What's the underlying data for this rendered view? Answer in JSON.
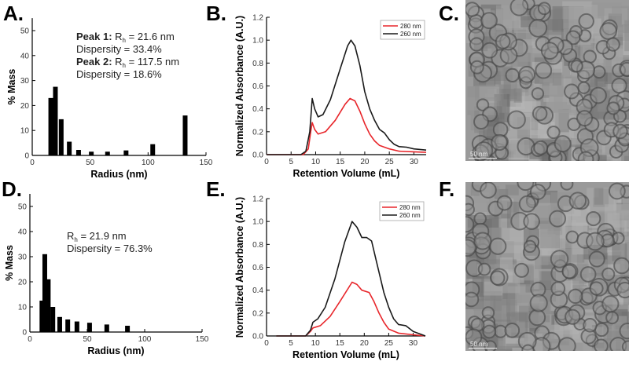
{
  "panel_labels": {
    "a": "A.",
    "b": "B.",
    "c": "C.",
    "d": "D.",
    "e": "E.",
    "f": "F."
  },
  "chart_data": [
    {
      "id": "A",
      "type": "bar",
      "xlabel": "Radius (nm)",
      "ylabel": "% Mass",
      "xlim": [
        0,
        150
      ],
      "ylim": [
        0,
        55
      ],
      "xticks": [
        0,
        50,
        100,
        150
      ],
      "yticks": [
        0,
        10,
        20,
        30,
        40,
        50
      ],
      "x": [
        16,
        20,
        25,
        32,
        40,
        51,
        65,
        81,
        104,
        132
      ],
      "values": [
        23,
        27.5,
        14.5,
        5.5,
        2.2,
        1.5,
        1.5,
        2,
        4.5,
        16
      ],
      "annotation": [
        {
          "bold": "Peak 1:",
          "text": " R",
          "sub": "h",
          "rest": " = 21.6 nm"
        },
        {
          "bold": "",
          "text": "Dispersity = 33.4%",
          "sub": "",
          "rest": ""
        },
        {
          "bold": "Peak 2:",
          "text": " R",
          "sub": "h",
          "rest": " = 117.5 nm"
        },
        {
          "bold": "",
          "text": "Dispersity = 18.6%",
          "sub": "",
          "rest": ""
        }
      ]
    },
    {
      "id": "B",
      "type": "line",
      "xlabel": "Retention Volume (mL)",
      "ylabel": "Normalized Absorbance (A.U.)",
      "xlim": [
        0,
        32.5
      ],
      "ylim": [
        0,
        1.2
      ],
      "xticks": [
        0,
        5,
        10,
        15,
        20,
        25,
        30
      ],
      "yticks": [
        0.0,
        0.2,
        0.4,
        0.6,
        0.8,
        1.0,
        1.2
      ],
      "legend": "top-right",
      "series": [
        {
          "name": "280 nm",
          "color": "#e8262b",
          "points": [
            [
              0,
              0
            ],
            [
              7.5,
              0
            ],
            [
              8.5,
              0.05
            ],
            [
              9,
              0.2
            ],
            [
              9.3,
              0.28
            ],
            [
              9.8,
              0.22
            ],
            [
              10.5,
              0.18
            ],
            [
              12,
              0.2
            ],
            [
              14,
              0.3
            ],
            [
              16,
              0.44
            ],
            [
              17,
              0.49
            ],
            [
              18,
              0.47
            ],
            [
              19,
              0.38
            ],
            [
              20,
              0.27
            ],
            [
              21,
              0.18
            ],
            [
              22,
              0.12
            ],
            [
              23,
              0.08
            ],
            [
              25,
              0.05
            ],
            [
              27,
              0.03
            ],
            [
              30,
              0.025
            ],
            [
              32.5,
              0.02
            ]
          ]
        },
        {
          "name": "260 nm",
          "color": "#1a1a1a",
          "points": [
            [
              0,
              0
            ],
            [
              7,
              0
            ],
            [
              8,
              0.03
            ],
            [
              8.8,
              0.2
            ],
            [
              9.3,
              0.49
            ],
            [
              9.8,
              0.4
            ],
            [
              10.5,
              0.33
            ],
            [
              11.5,
              0.35
            ],
            [
              13,
              0.48
            ],
            [
              15,
              0.75
            ],
            [
              16.5,
              0.95
            ],
            [
              17.2,
              1.0
            ],
            [
              18,
              0.95
            ],
            [
              19,
              0.78
            ],
            [
              20,
              0.55
            ],
            [
              21,
              0.4
            ],
            [
              22,
              0.3
            ],
            [
              23,
              0.22
            ],
            [
              24,
              0.19
            ],
            [
              25,
              0.13
            ],
            [
              26,
              0.09
            ],
            [
              27,
              0.07
            ],
            [
              28.5,
              0.065
            ],
            [
              30,
              0.05
            ],
            [
              32.5,
              0.04
            ]
          ]
        }
      ]
    },
    {
      "id": "D",
      "type": "bar",
      "xlabel": "Radius (nm)",
      "ylabel": "% Mass",
      "xlim": [
        0,
        150
      ],
      "ylim": [
        0,
        55
      ],
      "xticks": [
        0,
        50,
        100,
        150
      ],
      "yticks": [
        0,
        10,
        20,
        30,
        40,
        50
      ],
      "x": [
        10.5,
        13,
        16,
        20,
        26,
        33,
        41,
        52,
        67,
        85
      ],
      "values": [
        12.5,
        31,
        21,
        10,
        6,
        5,
        4.2,
        3.7,
        3,
        2.5
      ],
      "annotation": [
        {
          "bold": "",
          "text": "R",
          "sub": "h",
          "rest": " = 21.9 nm"
        },
        {
          "bold": "",
          "text": "Dispersity = 76.3%",
          "sub": "",
          "rest": ""
        }
      ]
    },
    {
      "id": "E",
      "type": "line",
      "xlabel": "Retention Volume (mL)",
      "ylabel": "Normalized Absorbance (A.U.)",
      "xlim": [
        0,
        32.5
      ],
      "ylim": [
        0,
        1.2
      ],
      "xticks": [
        0,
        5,
        10,
        15,
        20,
        25,
        30
      ],
      "yticks": [
        0.0,
        0.2,
        0.4,
        0.6,
        0.8,
        1.0,
        1.2
      ],
      "legend": "top-right",
      "series": [
        {
          "name": "280 nm",
          "color": "#e8262b",
          "points": [
            [
              2,
              0
            ],
            [
              8,
              0
            ],
            [
              9,
              0.04
            ],
            [
              9.5,
              0.07
            ],
            [
              11,
              0.09
            ],
            [
              13,
              0.17
            ],
            [
              15,
              0.3
            ],
            [
              17.5,
              0.47
            ],
            [
              18.5,
              0.45
            ],
            [
              19.5,
              0.4
            ],
            [
              21,
              0.38
            ],
            [
              22,
              0.3
            ],
            [
              23,
              0.2
            ],
            [
              24,
              0.12
            ],
            [
              25,
              0.06
            ],
            [
              27,
              0.025
            ],
            [
              30,
              0.01
            ],
            [
              32.5,
              0
            ]
          ]
        },
        {
          "name": "260 nm",
          "color": "#1a1a1a",
          "points": [
            [
              2,
              0
            ],
            [
              8,
              0
            ],
            [
              9,
              0.05
            ],
            [
              9.5,
              0.12
            ],
            [
              10.5,
              0.15
            ],
            [
              12,
              0.25
            ],
            [
              14,
              0.5
            ],
            [
              16,
              0.82
            ],
            [
              17.5,
              1.0
            ],
            [
              18.5,
              0.95
            ],
            [
              19.5,
              0.86
            ],
            [
              20.5,
              0.86
            ],
            [
              21.5,
              0.83
            ],
            [
              22.5,
              0.65
            ],
            [
              24,
              0.38
            ],
            [
              25,
              0.25
            ],
            [
              26,
              0.15
            ],
            [
              27,
              0.1
            ],
            [
              28.5,
              0.09
            ],
            [
              30,
              0.04
            ],
            [
              32.5,
              0.0
            ]
          ]
        }
      ]
    }
  ],
  "micrographs": [
    {
      "id": "C",
      "scale_bar": "50 nm"
    },
    {
      "id": "F",
      "scale_bar": "50 nm"
    }
  ]
}
